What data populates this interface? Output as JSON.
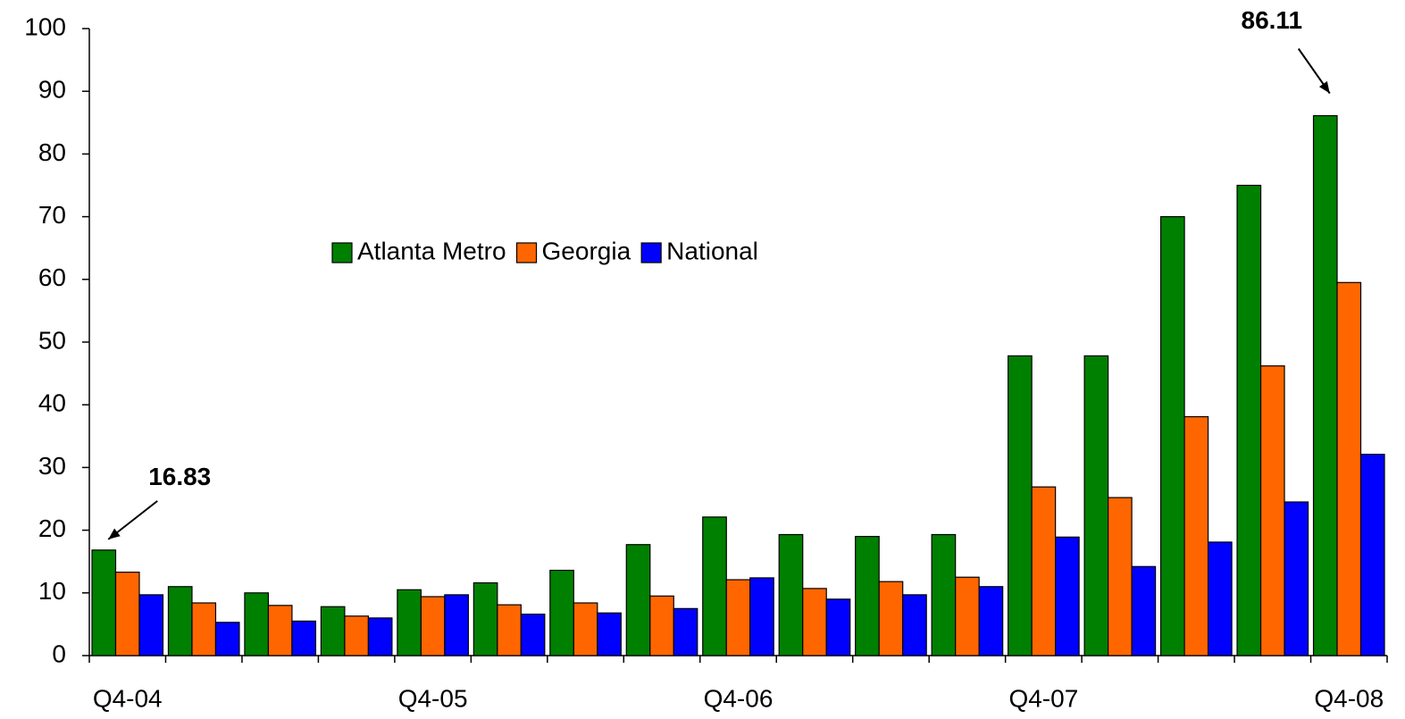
{
  "chart_data": {
    "type": "bar",
    "categories": [
      "Q4-04",
      null,
      null,
      null,
      "Q4-05",
      null,
      null,
      null,
      "Q4-06",
      null,
      null,
      null,
      "Q4-07",
      null,
      null,
      null,
      "Q4-08"
    ],
    "series": [
      {
        "name": "Atlanta Metro",
        "color": "#008000",
        "values": [
          16.83,
          11,
          10,
          7.8,
          10.5,
          11.6,
          13.6,
          17.7,
          22.1,
          19.3,
          19,
          19.3,
          47.8,
          47.8,
          70,
          75,
          86.11
        ],
        "value_labels": [
          "16.83",
          null,
          null,
          null,
          null,
          null,
          null,
          null,
          null,
          null,
          null,
          null,
          null,
          null,
          null,
          null,
          "86.11"
        ]
      },
      {
        "name": "Georgia",
        "color": "#ff6600",
        "values": [
          13.3,
          8.4,
          8,
          6.3,
          9.4,
          8.1,
          8.4,
          9.5,
          12.1,
          10.7,
          11.8,
          12.5,
          26.9,
          25.2,
          38.1,
          46.2,
          59.5
        ]
      },
      {
        "name": "National",
        "color": "#0000ff",
        "values": [
          9.7,
          5.3,
          5.5,
          6,
          9.7,
          6.6,
          6.8,
          7.5,
          12.4,
          9,
          9.7,
          11,
          18.9,
          14.2,
          18.1,
          24.5,
          32.1
        ]
      }
    ],
    "ylim": [
      0,
      100
    ],
    "yticks": [
      0,
      10,
      20,
      30,
      40,
      50,
      60,
      70,
      80,
      90,
      100
    ],
    "grid": false
  }
}
